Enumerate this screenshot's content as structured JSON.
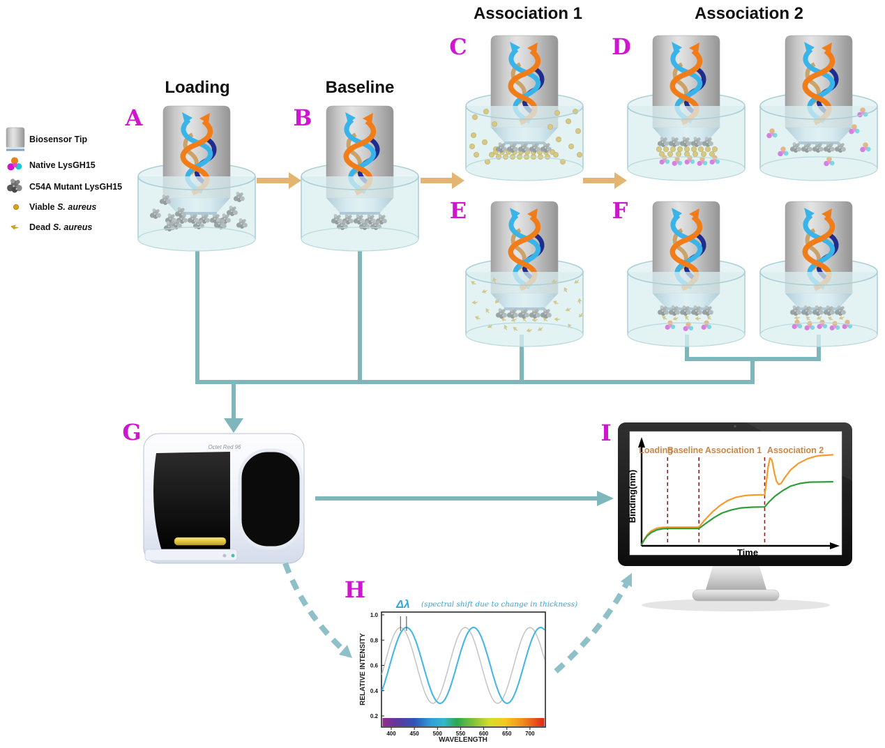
{
  "figure": {
    "stage_titles": {
      "loading": "Loading",
      "baseline": "Baseline",
      "association1": "Association 1",
      "association2": "Association 2"
    },
    "panel_letters": [
      "A",
      "B",
      "C",
      "D",
      "E",
      "F",
      "G",
      "H",
      "I"
    ],
    "legend": {
      "items": [
        {
          "label": "Biosensor Tip"
        },
        {
          "label": "Native LysGH15"
        },
        {
          "label": "C54A Mutant LysGH15"
        },
        {
          "prefix": "Viable ",
          "species": "S. aureus"
        },
        {
          "prefix": "Dead ",
          "species": "S. aureus"
        }
      ]
    },
    "instrument_label": "Octet Red 96",
    "colors": {
      "panel_letter": "#cf16cf",
      "flow_arrow": "#e3b571",
      "connector": "#7fb6bc",
      "well_liquid": "#d9edef",
      "native_lysgh15": [
        "#e8821c",
        "#cf13cf",
        "#17c9d4"
      ],
      "mutant_lysgh15": "#6a6a6a",
      "s_aureus_gold": "#d4a017",
      "phase_label": "#c8874b",
      "phase_divider": "#8e1f1f"
    }
  },
  "chart_data": [
    {
      "id": "interference_spectrum",
      "type": "line",
      "xlabel": "WAVELENGTH",
      "ylabel": "RELATIVE INTENSITY",
      "x_ticks": [
        400,
        450,
        500,
        550,
        600,
        650,
        700
      ],
      "y_ticks": [
        "1.0",
        "0.8",
        "0.6",
        "0.4",
        "0.2"
      ],
      "x_range_nm": [
        379,
        733
      ],
      "ylim": [
        0.1,
        1.0
      ],
      "grid": false,
      "annotation_symbol": "Δλ",
      "annotation_text": "(spectral shift due to change in thickness)",
      "annotation_color": "#2da8e0",
      "wavelength_colorbar": true,
      "series": [
        {
          "name": "gray reference spectrum",
          "color": "#c3c3c3",
          "waveform": "cosine",
          "mean": 0.6,
          "amplitude": 0.3,
          "first_peak_nm": 420,
          "period_nm": 140
        },
        {
          "name": "blue shifted spectrum",
          "color": "#45b6e6",
          "waveform": "cosine",
          "mean": 0.6,
          "amplitude": 0.3,
          "first_peak_nm": 433,
          "period_nm": 145
        }
      ]
    },
    {
      "id": "binding_sensorgram",
      "type": "line",
      "xlabel": "Time",
      "ylabel": "Binding(nm)",
      "grid": false,
      "phases": [
        {
          "label": "Loading",
          "label_x": 0.075,
          "boundary_x": 0.136
        },
        {
          "label": "Baseline",
          "label_x": 0.228,
          "boundary_x": 0.3
        },
        {
          "label": "Association 1",
          "label_x": 0.48,
          "boundary_x": 0.644
        },
        {
          "label": "Association 2",
          "label_x": 0.805,
          "boundary_x": null
        }
      ],
      "series": [
        {
          "name": "orange trace",
          "color": "#f49b2c",
          "points": [
            [
              0,
              0
            ],
            [
              0.015,
              0.05
            ],
            [
              0.03,
              0.09
            ],
            [
              0.05,
              0.125
            ],
            [
              0.08,
              0.15
            ],
            [
              0.11,
              0.158
            ],
            [
              0.136,
              0.16
            ],
            [
              0.3,
              0.16
            ],
            [
              0.33,
              0.225
            ],
            [
              0.37,
              0.3
            ],
            [
              0.41,
              0.36
            ],
            [
              0.45,
              0.405
            ],
            [
              0.49,
              0.435
            ],
            [
              0.54,
              0.452
            ],
            [
              0.59,
              0.458
            ],
            [
              0.644,
              0.46
            ],
            [
              0.652,
              0.56
            ],
            [
              0.662,
              0.72
            ],
            [
              0.672,
              0.8
            ],
            [
              0.682,
              0.78
            ],
            [
              0.695,
              0.66
            ],
            [
              0.706,
              0.585
            ],
            [
              0.718,
              0.555
            ],
            [
              0.73,
              0.565
            ],
            [
              0.75,
              0.62
            ],
            [
              0.78,
              0.69
            ],
            [
              0.82,
              0.75
            ],
            [
              0.87,
              0.795
            ],
            [
              0.92,
              0.82
            ],
            [
              1,
              0.83
            ]
          ]
        },
        {
          "name": "green trace",
          "color": "#2e9e3a",
          "points": [
            [
              0,
              0
            ],
            [
              0.015,
              0.045
            ],
            [
              0.03,
              0.08
            ],
            [
              0.05,
              0.11
            ],
            [
              0.08,
              0.135
            ],
            [
              0.11,
              0.145
            ],
            [
              0.136,
              0.148
            ],
            [
              0.3,
              0.148
            ],
            [
              0.34,
              0.2
            ],
            [
              0.38,
              0.25
            ],
            [
              0.42,
              0.29
            ],
            [
              0.47,
              0.32
            ],
            [
              0.52,
              0.338
            ],
            [
              0.58,
              0.345
            ],
            [
              0.644,
              0.347
            ],
            [
              0.67,
              0.4
            ],
            [
              0.7,
              0.45
            ],
            [
              0.74,
              0.5
            ],
            [
              0.78,
              0.54
            ],
            [
              0.83,
              0.565
            ],
            [
              0.88,
              0.577
            ],
            [
              1,
              0.58
            ]
          ]
        }
      ]
    }
  ]
}
